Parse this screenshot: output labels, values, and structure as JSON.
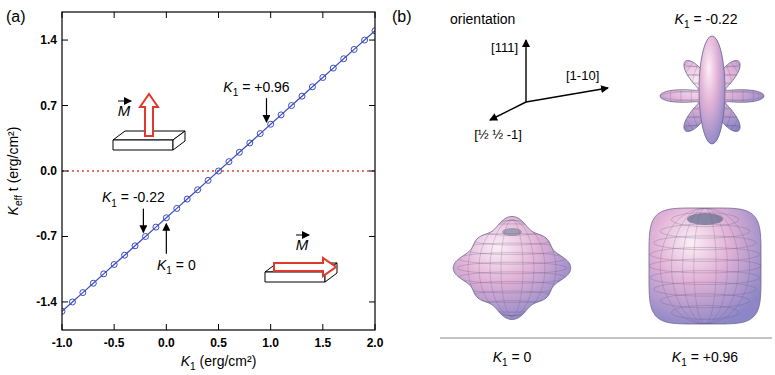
{
  "chart_data": {
    "type": "line",
    "panel_label": "(a)",
    "xlabel": [
      "K",
      "1",
      " (erg/cm²)"
    ],
    "ylabel": [
      "K",
      "eff",
      " t (erg/cm²)"
    ],
    "xlim": [
      -1,
      2
    ],
    "ylim": [
      -1.7,
      1.7
    ],
    "xticks": [
      {
        "value": -1,
        "label": "-1.0"
      },
      -0.5,
      {
        "value": 0,
        "label": "0.0"
      },
      0.5,
      {
        "value": 1,
        "label": "1.0"
      },
      1.5,
      {
        "value": 2,
        "label": "2.0"
      }
    ],
    "yticks": [
      -1.4,
      -0.7,
      {
        "value": 0,
        "label": "0.0"
      },
      0.7,
      1.4
    ],
    "grid": false,
    "x": [
      -1,
      -0.9,
      -0.8,
      -0.7,
      -0.6,
      -0.5,
      -0.4,
      -0.3,
      -0.2,
      -0.1,
      0,
      0.1,
      0.2,
      0.3,
      0.4,
      0.5,
      0.6,
      0.7,
      0.8,
      0.9,
      1,
      1.1,
      1.2,
      1.3,
      1.4,
      1.5,
      1.6,
      1.7,
      1.8,
      1.9,
      2
    ],
    "series": [
      {
        "color": "#3b4cc0",
        "marker": "circle",
        "values": [
          -1.5,
          -1.4,
          -1.3,
          -1.2,
          -1.1,
          -1.0,
          -0.9,
          -0.8,
          -0.7,
          -0.6,
          -0.5,
          -0.4,
          -0.3,
          -0.2,
          -0.1,
          0,
          0.1,
          0.2,
          0.3,
          0.4,
          0.5,
          0.6,
          0.7,
          0.8,
          0.9,
          1.0,
          1.1,
          1.2,
          1.3,
          1.4,
          1.5
        ]
      }
    ],
    "reference_line": {
      "y": 0,
      "color": "#e8403a",
      "line_style": "dotted"
    },
    "annotations": [
      {
        "text": [
          "K",
          "1",
          " = +0.96"
        ],
        "x": 0.96,
        "y": 0.46,
        "position": "above"
      },
      {
        "text": [
          "K",
          "1",
          " = -0.22"
        ],
        "x": -0.22,
        "y": -0.72,
        "position": "above"
      },
      {
        "text": [
          "K",
          "1",
          " = 0"
        ],
        "x": 0,
        "y": -0.5,
        "position": "below"
      }
    ],
    "insets": [
      {
        "label": "M",
        "direction": "up"
      },
      {
        "label": "M",
        "direction": "right"
      }
    ]
  },
  "panel_b": {
    "label": "(b)",
    "orientation_title": "orientation",
    "axes": [
      "[111]",
      "[1-10]",
      "[½ ½ -1]"
    ],
    "surfaces": [
      {
        "k1": -0.22,
        "label": [
          "K",
          "1",
          " = -0.22"
        ]
      },
      {
        "k1": 0,
        "label": [
          "K",
          "1",
          " = 0"
        ]
      },
      {
        "k1": 0.96,
        "label": [
          "K",
          "1",
          " = +0.96"
        ]
      }
    ]
  }
}
